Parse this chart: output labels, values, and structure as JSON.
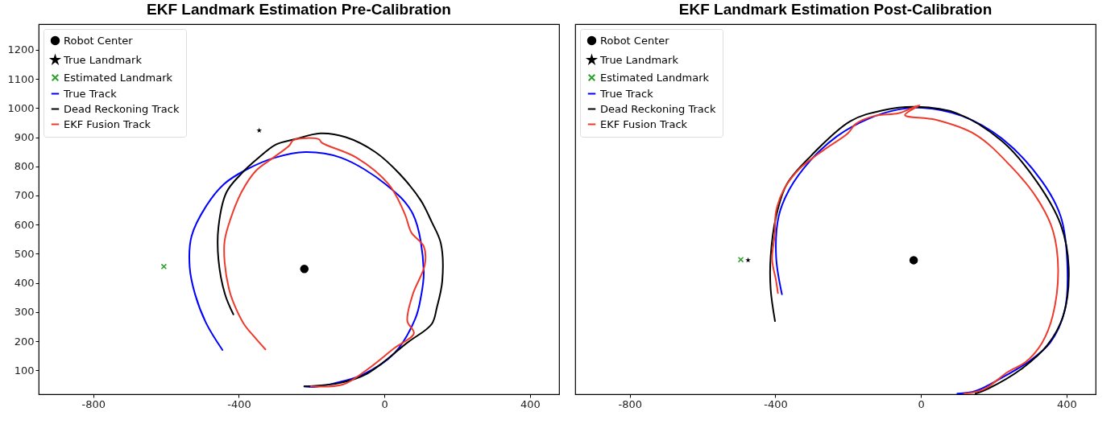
{
  "chart_data": [
    {
      "type": "line",
      "title": "EKF Landmark Estimation Pre-Calibration",
      "xlim": [
        -950,
        480
      ],
      "xticks": [
        -800,
        -400,
        0,
        400
      ],
      "ylim": [
        18,
        1288
      ],
      "yticks": [
        100,
        200,
        300,
        400,
        500,
        600,
        700,
        800,
        900,
        1000,
        1100,
        1200
      ],
      "legend": "top left",
      "grid": false,
      "series": [
        {
          "name": "Robot Center",
          "type": "scatter",
          "marker": "circle",
          "color": "#000000",
          "x": [
            -220
          ],
          "values": [
            448
          ]
        },
        {
          "name": "True Landmark",
          "type": "scatter",
          "marker": "star",
          "color": "#000000",
          "x": [
            -344
          ],
          "values": [
            923
          ]
        },
        {
          "name": "Estimated Landmark",
          "type": "scatter",
          "marker": "cross",
          "color": "#2ca02c",
          "x": [
            -606
          ],
          "values": [
            456
          ]
        },
        {
          "name": "True Track",
          "type": "line",
          "color": "#0000ff",
          "x": [
            -445,
            -489,
            -520,
            -535,
            -530,
            -489,
            -440,
            -379,
            -300,
            -217,
            -120,
            4,
            78,
            108,
            100,
            85,
            27,
            -62,
            -140,
            -194,
            -220
          ],
          "values": [
            170,
            260,
            360,
            453,
            560,
            665,
            740,
            789,
            830,
            849,
            830,
            738,
            637,
            443,
            350,
            278,
            158,
            84,
            55,
            43,
            45
          ]
        },
        {
          "name": "Dead Reckoning Track",
          "type": "line",
          "color": "#000000",
          "x": [
            -415,
            -438,
            -456,
            -456,
            -434,
            -393,
            -349,
            -298,
            -246,
            -176,
            -106,
            -25,
            41,
            100,
            130,
            155,
            159,
            144,
            130,
            63,
            -47,
            -121,
            -220
          ],
          "values": [
            292,
            361,
            480,
            591,
            711,
            775,
            826,
            875,
            893,
            913,
            900,
            849,
            775,
            683,
            609,
            536,
            407,
            315,
            259,
            195,
            89,
            57,
            45
          ]
        },
        {
          "name": "EKF Fusion Track",
          "type": "line",
          "color": "#ee3a2c",
          "x": [
            -327,
            -356,
            -386,
            -415,
            -427,
            -439,
            -439,
            -423,
            -393,
            -353,
            -305,
            -261,
            -250,
            -180,
            -172,
            -77,
            12,
            56,
            74,
            108,
            111,
            78,
            63,
            81,
            27,
            -47,
            -113,
            -202
          ],
          "values": [
            172,
            213,
            259,
            333,
            379,
            471,
            545,
            619,
            711,
            785,
            830,
            872,
            890,
            893,
            881,
            830,
            738,
            637,
            573,
            526,
            462,
            361,
            269,
            227,
            176,
            103,
            52,
            45
          ]
        }
      ]
    },
    {
      "type": "line",
      "title": "EKF Landmark Estimation Post-Calibration",
      "xlim": [
        -950,
        480
      ],
      "xticks": [
        -800,
        -400,
        0,
        400
      ],
      "ylim": [
        18,
        1288
      ],
      "tick_labels": "x",
      "legend": "top left",
      "grid": false,
      "series": [
        {
          "name": "Robot Center",
          "type": "scatter",
          "marker": "circle",
          "color": "#000000",
          "x": [
            -20
          ],
          "values": [
            478
          ]
        },
        {
          "name": "True Landmark",
          "type": "scatter",
          "marker": "star",
          "color": "#000000",
          "x": [
            -475
          ],
          "values": [
            478
          ]
        },
        {
          "name": "Estimated Landmark",
          "type": "scatter",
          "marker": "cross",
          "color": "#2ca02c",
          "x": [
            -495
          ],
          "values": [
            480
          ]
        },
        {
          "name": "True Track",
          "type": "line",
          "color": "#0000ff",
          "x": [
            -382,
            -398,
            -391,
            -362,
            -303,
            -230,
            -143,
            -62,
            4,
            113,
            223,
            333,
            384,
            402,
            395,
            355,
            296,
            223,
            150,
            100
          ],
          "values": [
            361,
            490,
            628,
            720,
            821,
            904,
            964,
            995,
            1001,
            973,
            895,
            748,
            628,
            471,
            305,
            195,
            130,
            75,
            29,
            20
          ]
        },
        {
          "name": "Dead Reckoning Track",
          "type": "line",
          "color": "#000000",
          "x": [
            -401,
            -413,
            -413,
            -398,
            -369,
            -303,
            -194,
            -106,
            -11,
            99,
            223,
            318,
            384,
            406,
            391,
            347,
            274,
            186,
            150
          ],
          "values": [
            269,
            379,
            490,
            628,
            738,
            835,
            955,
            992,
            1004,
            982,
            886,
            748,
            600,
            453,
            287,
            186,
            103,
            38,
            20
          ]
        },
        {
          "name": "EKF Fusion Track",
          "type": "line",
          "color": "#ee3a2c",
          "x": [
            -393,
            -398,
            -409,
            -402,
            -398,
            -377,
            -336,
            -296,
            -259,
            -201,
            -179,
            -128,
            -62,
            -33,
            -4,
            -44,
            40,
            150,
            245,
            318,
            362,
            377,
            362,
            333,
            289,
            238,
            172,
            120
          ],
          "values": [
            365,
            407,
            481,
            564,
            646,
            720,
            789,
            830,
            863,
            913,
            946,
            973,
            982,
            996,
            1010,
            976,
            960,
            909,
            803,
            692,
            582,
            444,
            287,
            195,
            130,
            94,
            34,
            20
          ]
        }
      ]
    }
  ]
}
